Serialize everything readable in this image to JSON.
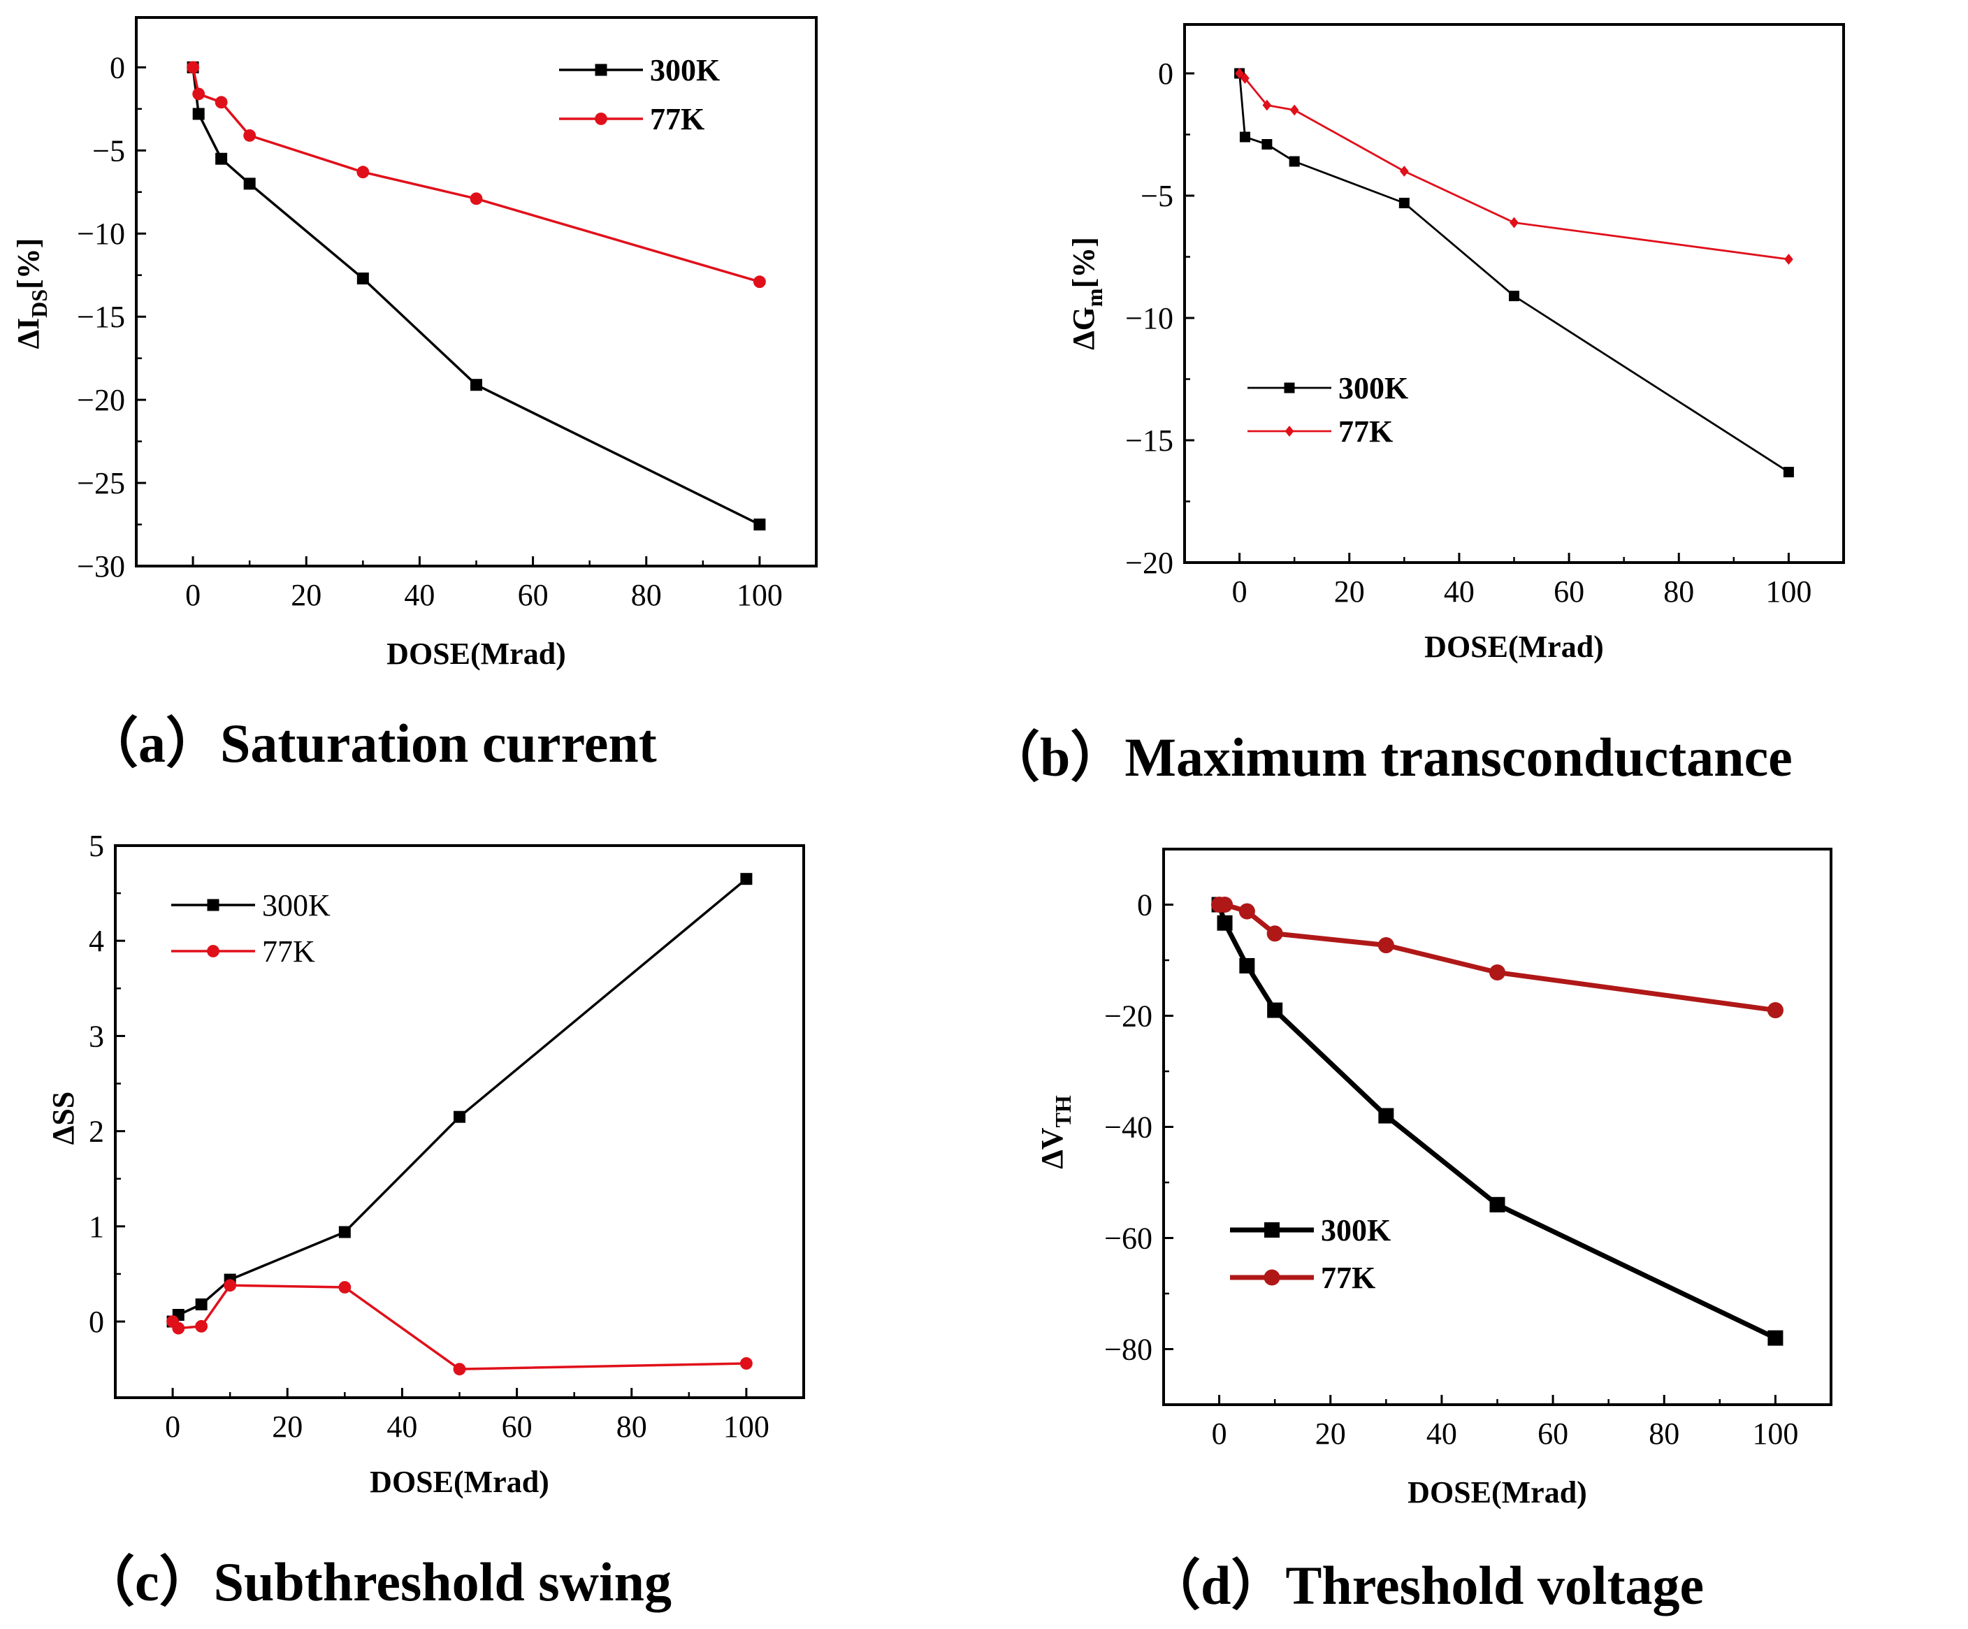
{
  "figure": {
    "colors": {
      "s300": "#000000",
      "s77": "#e0101a",
      "s77d": "#b01818"
    }
  },
  "chart_data": [
    {
      "id": "a",
      "type": "line",
      "caption": "（a）Saturation current",
      "title": "",
      "xlabel": "DOSE(Mrad)",
      "ylabel": {
        "main": "ΔI",
        "sub": "DS",
        "suffix": "[%]"
      },
      "xlim": [
        -10,
        110
      ],
      "ylim": [
        -30,
        3
      ],
      "xticks": [
        0,
        20,
        40,
        60,
        80,
        100
      ],
      "yticks": [
        0,
        -5,
        -10,
        -15,
        -20,
        -25,
        -30
      ],
      "grid": false,
      "legend_position": "top-right",
      "series": [
        {
          "name": "300K",
          "color": "#000000",
          "marker": "square",
          "x": [
            0,
            1,
            5,
            10,
            30,
            50,
            100
          ],
          "y": [
            0,
            -2.8,
            -5.5,
            -7.0,
            -12.7,
            -19.1,
            -27.5
          ]
        },
        {
          "name": "77K",
          "color": "#e0101a",
          "marker": "circle",
          "x": [
            0,
            1,
            5,
            10,
            30,
            50,
            100
          ],
          "y": [
            0,
            -1.6,
            -2.1,
            -4.1,
            -6.3,
            -7.9,
            -12.9
          ]
        }
      ]
    },
    {
      "id": "b",
      "type": "line",
      "caption": "（b）Maximum transconductance",
      "title": "",
      "xlabel": "DOSE(Mrad)",
      "ylabel": {
        "main": "ΔG",
        "sub": "m",
        "suffix": "[%]"
      },
      "xlim": [
        -10,
        110
      ],
      "ylim": [
        -20,
        2
      ],
      "xticks": [
        0,
        20,
        40,
        60,
        80,
        100
      ],
      "yticks": [
        0,
        -5,
        -10,
        -15,
        -20
      ],
      "grid": false,
      "legend_position": "middle-left",
      "series": [
        {
          "name": "300K",
          "color": "#000000",
          "marker": "square",
          "x": [
            0,
            1,
            5,
            10,
            30,
            50,
            100
          ],
          "y": [
            0,
            -2.6,
            -2.9,
            -3.6,
            -5.3,
            -9.1,
            -16.3
          ]
        },
        {
          "name": "77K",
          "color": "#e0101a",
          "marker": "diamond",
          "x": [
            0,
            1,
            5,
            10,
            30,
            50,
            100
          ],
          "y": [
            0,
            -0.2,
            -1.3,
            -1.5,
            -4.0,
            -6.1,
            -7.6
          ]
        }
      ]
    },
    {
      "id": "c",
      "type": "line",
      "caption": "（c）Subthreshold swing",
      "title": "",
      "xlabel": "DOSE(Mrad)",
      "ylabel": {
        "main": "ΔSS",
        "sub": "",
        "suffix": ""
      },
      "xlim": [
        -10,
        110
      ],
      "ylim": [
        -0.8,
        5
      ],
      "xticks": [
        0,
        20,
        40,
        60,
        80,
        100
      ],
      "yticks": [
        0,
        1,
        2,
        3,
        4,
        5
      ],
      "grid": false,
      "legend_position": "top-left",
      "series": [
        {
          "name": "300K",
          "color": "#000000",
          "marker": "square",
          "x": [
            0,
            1,
            5,
            10,
            30,
            50,
            100
          ],
          "y": [
            0,
            0.07,
            0.18,
            0.44,
            0.94,
            2.15,
            4.65
          ]
        },
        {
          "name": "77K",
          "color": "#e0101a",
          "marker": "circle",
          "x": [
            0,
            1,
            5,
            10,
            30,
            50,
            100
          ],
          "y": [
            0,
            -0.07,
            -0.05,
            0.38,
            0.36,
            -0.5,
            -0.44
          ]
        }
      ]
    },
    {
      "id": "d",
      "type": "line",
      "caption": "（d）Threshold voltage",
      "title": "",
      "xlabel": "DOSE(Mrad)",
      "ylabel": {
        "main": "ΔV",
        "sub": "TH",
        "suffix": ""
      },
      "xlim": [
        -10,
        110
      ],
      "ylim": [
        -90,
        10
      ],
      "xticks": [
        0,
        20,
        40,
        60,
        80,
        100
      ],
      "yticks": [
        0,
        -20,
        -40,
        -60,
        -80
      ],
      "grid": false,
      "legend_position": "bottom-left",
      "series": [
        {
          "name": "300K",
          "color": "#000000",
          "marker": "square",
          "x": [
            0,
            1,
            5,
            10,
            30,
            50,
            100
          ],
          "y": [
            0,
            -3.3,
            -11,
            -19,
            -38,
            -54,
            -78
          ]
        },
        {
          "name": "77K",
          "color": "#b01818",
          "marker": "circle",
          "x": [
            0,
            1,
            5,
            10,
            30,
            50,
            100
          ],
          "y": [
            0,
            0,
            -1.2,
            -5.2,
            -7.3,
            -12.2,
            -19
          ]
        }
      ]
    }
  ]
}
